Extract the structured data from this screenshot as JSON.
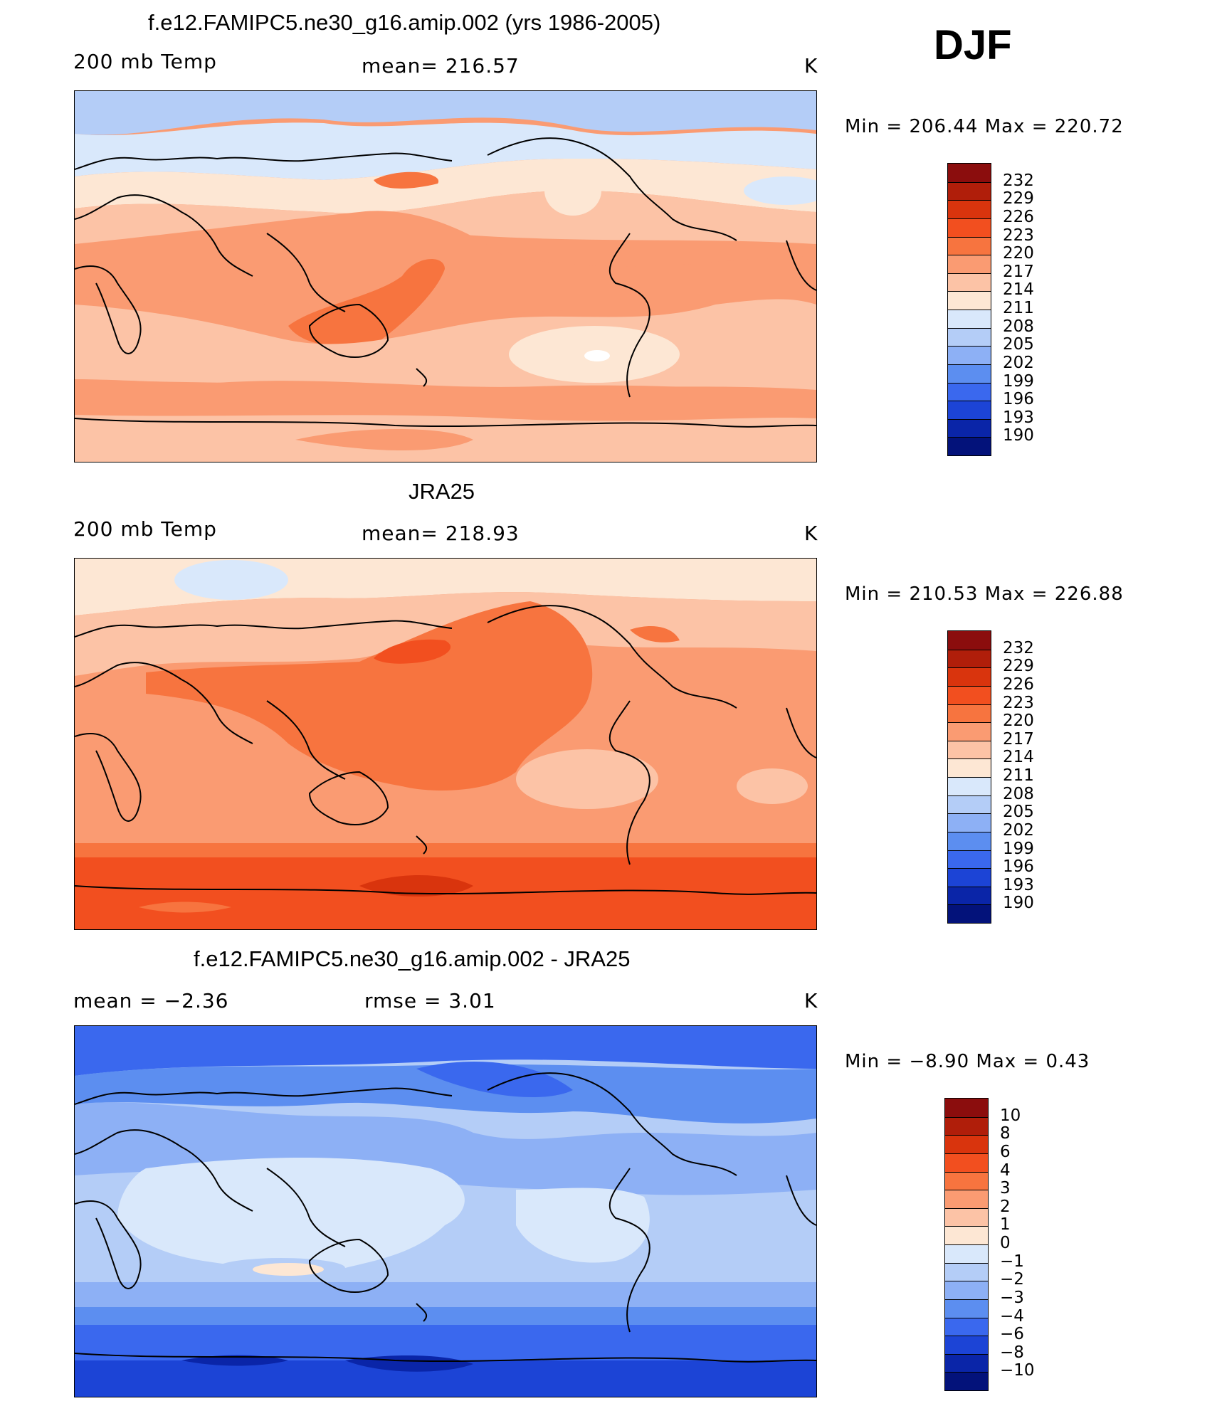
{
  "season": "DJF",
  "panels": [
    {
      "id": "model",
      "title": "f.e12.FAMIPC5.ne30_g16.amip.002 (yrs 1986-2005)",
      "left_label": "200 mb Temp",
      "center_label": "mean=  216.57",
      "units": "K",
      "min_max": "Min  =  206.44  Max  =  220.72",
      "colorbar_labels": [
        "232",
        "229",
        "226",
        "223",
        "220",
        "217",
        "214",
        "211",
        "208",
        "205",
        "202",
        "199",
        "196",
        "193",
        "190"
      ]
    },
    {
      "id": "obs",
      "title": "JRA25",
      "left_label": "200 mb Temp",
      "center_label": "mean=  218.93",
      "units": "K",
      "min_max": "Min  =  210.53  Max  =  226.88",
      "colorbar_labels": [
        "232",
        "229",
        "226",
        "223",
        "220",
        "217",
        "214",
        "211",
        "208",
        "205",
        "202",
        "199",
        "196",
        "193",
        "190"
      ]
    },
    {
      "id": "diff",
      "title": "f.e12.FAMIPC5.ne30_g16.amip.002 - JRA25",
      "left_label": "mean  =     −2.36",
      "center_label": "rmse  =     3.01",
      "units": "K",
      "min_max": "Min  =    −8.90  Max  =      0.43",
      "colorbar_labels": [
        "10",
        "8",
        "6",
        "4",
        "3",
        "2",
        "1",
        "0",
        "−1",
        "−2",
        "−3",
        "−4",
        "−6",
        "−8",
        "−10"
      ]
    }
  ],
  "colors": {
    "cbar_abs": [
      "#8b0d0d",
      "#b01e0a",
      "#d9340d",
      "#f24f1f",
      "#f7743f",
      "#fa9b72",
      "#fcc3a6",
      "#fde7d4",
      "#d9e8fb",
      "#b4cdf7",
      "#8db0f5",
      "#5c8ef0",
      "#3a68ee",
      "#1c44d6",
      "#0a25a8",
      "#03127a"
    ],
    "cbar_diff": [
      "#8b0d0d",
      "#b01e0a",
      "#d9340d",
      "#f24f1f",
      "#f7743f",
      "#fa9b72",
      "#fcc3a6",
      "#fde7d4",
      "#d9e8fb",
      "#b4cdf7",
      "#8db0f5",
      "#5c8ef0",
      "#3a68ee",
      "#1c44d6",
      "#0a25a8",
      "#03127a"
    ]
  }
}
